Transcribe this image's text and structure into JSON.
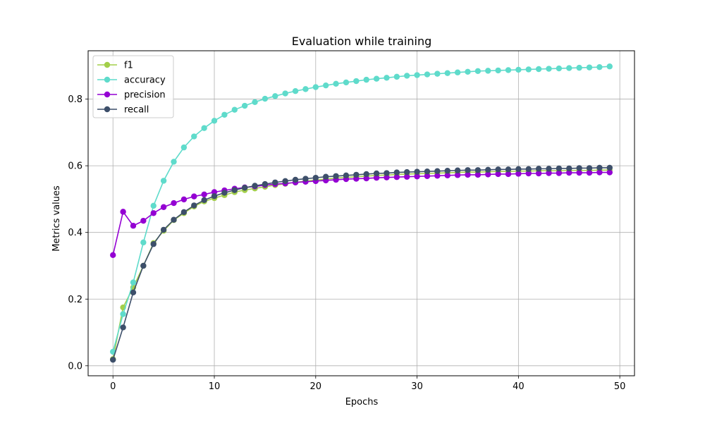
{
  "chart_data": {
    "type": "line",
    "title": "Evaluation while training",
    "xlabel": "Epochs",
    "ylabel": "Metrics values",
    "xlim": [
      -2.45,
      51.45
    ],
    "ylim": [
      -0.03,
      0.945
    ],
    "xticks": [
      0,
      10,
      20,
      30,
      40,
      50
    ],
    "yticks": [
      0.0,
      0.2,
      0.4,
      0.6,
      0.8
    ],
    "ytick_labels": [
      "0.0",
      "0.2",
      "0.4",
      "0.6",
      "0.8"
    ],
    "grid": true,
    "legend_position": "upper-left",
    "x": [
      0,
      1,
      2,
      3,
      4,
      5,
      6,
      7,
      8,
      9,
      10,
      11,
      12,
      13,
      14,
      15,
      16,
      17,
      18,
      19,
      20,
      21,
      22,
      23,
      24,
      25,
      26,
      27,
      28,
      29,
      30,
      31,
      32,
      33,
      34,
      35,
      36,
      37,
      38,
      39,
      40,
      41,
      42,
      43,
      44,
      45,
      46,
      47,
      48,
      49
    ],
    "series": [
      {
        "name": "f1",
        "color": "#a3cf4a",
        "values": [
          0.02,
          0.175,
          0.235,
          0.3,
          0.368,
          0.405,
          0.437,
          0.458,
          0.478,
          0.493,
          0.503,
          0.512,
          0.521,
          0.527,
          0.532,
          0.537,
          0.542,
          0.546,
          0.55,
          0.554,
          0.557,
          0.56,
          0.563,
          0.565,
          0.567,
          0.569,
          0.571,
          0.572,
          0.574,
          0.575,
          0.576,
          0.577,
          0.578,
          0.579,
          0.58,
          0.581,
          0.581,
          0.582,
          0.583,
          0.583,
          0.584,
          0.584,
          0.585,
          0.585,
          0.585,
          0.586,
          0.586,
          0.586,
          0.587,
          0.587
        ]
      },
      {
        "name": "accuracy",
        "color": "#5fdbcb",
        "values": [
          0.042,
          0.155,
          0.25,
          0.37,
          0.48,
          0.555,
          0.612,
          0.655,
          0.688,
          0.713,
          0.735,
          0.753,
          0.768,
          0.78,
          0.791,
          0.801,
          0.809,
          0.817,
          0.824,
          0.83,
          0.836,
          0.841,
          0.846,
          0.85,
          0.854,
          0.858,
          0.861,
          0.864,
          0.867,
          0.87,
          0.872,
          0.874,
          0.876,
          0.878,
          0.88,
          0.882,
          0.884,
          0.885,
          0.886,
          0.887,
          0.888,
          0.889,
          0.89,
          0.891,
          0.892,
          0.893,
          0.894,
          0.895,
          0.896,
          0.898
        ]
      },
      {
        "name": "precision",
        "color": "#9400d3",
        "values": [
          0.332,
          0.462,
          0.42,
          0.435,
          0.458,
          0.476,
          0.488,
          0.499,
          0.508,
          0.514,
          0.521,
          0.526,
          0.531,
          0.535,
          0.538,
          0.542,
          0.545,
          0.547,
          0.55,
          0.552,
          0.554,
          0.556,
          0.558,
          0.56,
          0.561,
          0.562,
          0.564,
          0.565,
          0.566,
          0.567,
          0.568,
          0.569,
          0.57,
          0.571,
          0.572,
          0.573,
          0.573,
          0.574,
          0.575,
          0.575,
          0.576,
          0.577,
          0.577,
          0.578,
          0.578,
          0.579,
          0.579,
          0.579,
          0.58,
          0.58
        ]
      },
      {
        "name": "recall",
        "color": "#3d4f6a",
        "values": [
          0.018,
          0.115,
          0.22,
          0.3,
          0.365,
          0.408,
          0.438,
          0.461,
          0.481,
          0.497,
          0.509,
          0.519,
          0.527,
          0.534,
          0.54,
          0.545,
          0.55,
          0.554,
          0.558,
          0.561,
          0.564,
          0.567,
          0.569,
          0.571,
          0.573,
          0.575,
          0.577,
          0.578,
          0.58,
          0.581,
          0.582,
          0.583,
          0.584,
          0.585,
          0.586,
          0.587,
          0.587,
          0.588,
          0.589,
          0.589,
          0.59,
          0.59,
          0.591,
          0.591,
          0.592,
          0.592,
          0.593,
          0.593,
          0.594,
          0.594
        ]
      }
    ]
  }
}
